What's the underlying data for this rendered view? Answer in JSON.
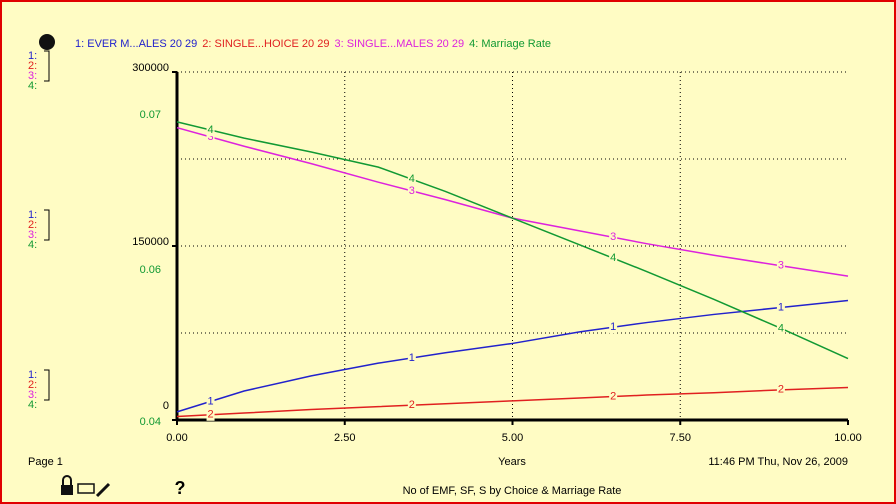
{
  "chart_data": {
    "type": "line",
    "series_keys": [
      "1:",
      "2:",
      "3:",
      "4:"
    ],
    "x": [
      0,
      1,
      2,
      3,
      4,
      5,
      6,
      7,
      8,
      9,
      10
    ],
    "xlim": [
      0,
      10
    ],
    "xticks": [
      {
        "value": 0,
        "label": "0.00"
      },
      {
        "value": 2.5,
        "label": "2.50"
      },
      {
        "value": 5,
        "label": "5.00"
      },
      {
        "value": 7.5,
        "label": "7.50"
      },
      {
        "value": 10,
        "label": "10.00"
      }
    ],
    "xlabel": "Years",
    "ylim": [
      0,
      300000
    ],
    "yticks": [
      0,
      150000,
      300000
    ],
    "y2lim": [
      0.045,
      0.075
    ],
    "y2ticks": [
      {
        "value": 0.045,
        "label": "0.04"
      },
      {
        "value": 0.06,
        "label": "0.06"
      },
      {
        "value": 0.075,
        "label": "0.07"
      }
    ],
    "grid": true,
    "series": [
      {
        "name": "1: EVER M...ALES 20 29",
        "marker": "1",
        "color": "#2222cc",
        "values": [
          7000,
          25000,
          38000,
          49000,
          58000,
          66000,
          76000,
          84000,
          91000,
          97000,
          103000
        ]
      },
      {
        "name": "2: SINGLE...HOICE 20 29",
        "marker": "2",
        "color": "#e02020",
        "values": [
          3000,
          6000,
          9000,
          11500,
          14000,
          16500,
          19000,
          21500,
          23500,
          26000,
          28000
        ]
      },
      {
        "name": "3: SINGLE...MALES 20 29",
        "marker": "3",
        "color": "#dd22dd",
        "values": [
          252000,
          236000,
          221000,
          205000,
          190000,
          174000,
          163000,
          152000,
          142000,
          133000,
          124000
        ]
      },
      {
        "name": "4: Marriage Rate",
        "marker": "4",
        "color": "#119933",
        "axis": "y2",
        "values": [
          0.0707,
          0.0693,
          0.0681,
          0.0668,
          0.0647,
          0.0624,
          0.0601,
          0.0578,
          0.0554,
          0.0529,
          0.0503
        ]
      }
    ],
    "page": "Page 1",
    "timestamp": "11:46 PM   Thu, Nov 26, 2009",
    "footer_title": "No of EMF, SF, S by Choice & Marriage Rate",
    "help": "?"
  }
}
